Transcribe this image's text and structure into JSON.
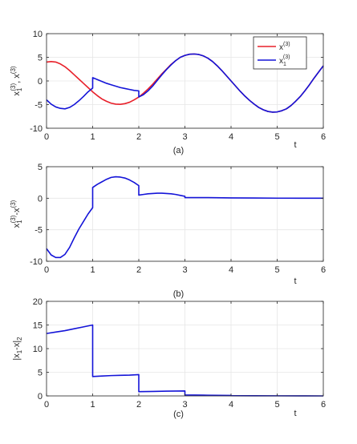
{
  "chart_data": [
    {
      "type": "line",
      "caption": "(a)",
      "xlabel": "t",
      "ylabel_parts": {
        "a": "x",
        "a_sub": "1",
        "a_sup": "(3)",
        "sep": ", ",
        "b": "x",
        "b_sup": "(3)"
      },
      "xlim": [
        0,
        6
      ],
      "ylim": [
        -10,
        10
      ],
      "xticks": [
        "0",
        "1",
        "2",
        "3",
        "4",
        "5",
        "6"
      ],
      "yticks": [
        "-10",
        "-5",
        "0",
        "5",
        "10"
      ],
      "grid": true,
      "legend": {
        "placement": "top-right",
        "entries": [
          {
            "base": "x",
            "sup": "(3)",
            "sub": ""
          },
          {
            "base": "x",
            "sup": "(3)",
            "sub": "1"
          }
        ]
      },
      "series": [
        {
          "color": "#e8202a",
          "legend_index": 0,
          "x": [
            0,
            0.1,
            0.2,
            0.3,
            0.4,
            0.5,
            0.6,
            0.7,
            0.8,
            0.9,
            1.0,
            1.1,
            1.2,
            1.3,
            1.4,
            1.5,
            1.6,
            1.7,
            1.8,
            1.9,
            2.0,
            2.1,
            2.2,
            2.3,
            2.4,
            2.5,
            2.6,
            2.7,
            2.8,
            2.9,
            3.0,
            3.1,
            3.2,
            3.3,
            3.4,
            3.5,
            3.6,
            3.7,
            3.8,
            3.9,
            4.0,
            4.1,
            4.2,
            4.3,
            4.4,
            4.5,
            4.6,
            4.7,
            4.8,
            4.9,
            5.0,
            5.1,
            5.2,
            5.3,
            5.4,
            5.5,
            5.6,
            5.7,
            5.8,
            5.9,
            6.0
          ],
          "y": [
            4.0,
            4.1,
            4.0,
            3.6,
            3.0,
            2.2,
            1.3,
            0.4,
            -0.5,
            -1.4,
            -2.3,
            -3.1,
            -3.8,
            -4.3,
            -4.7,
            -4.9,
            -4.95,
            -4.8,
            -4.5,
            -4.0,
            -3.4,
            -2.6,
            -1.7,
            -0.7,
            0.4,
            1.5,
            2.5,
            3.5,
            4.3,
            5.0,
            5.4,
            5.65,
            5.7,
            5.6,
            5.3,
            4.8,
            4.1,
            3.2,
            2.2,
            1.1,
            0.0,
            -1.1,
            -2.2,
            -3.2,
            -4.1,
            -4.9,
            -5.6,
            -6.1,
            -6.45,
            -6.6,
            -6.55,
            -6.3,
            -5.9,
            -5.2,
            -4.3,
            -3.3,
            -2.1,
            -0.8,
            0.6,
            1.9,
            3.2
          ]
        },
        {
          "color": "#1414d8",
          "legend_index": 1,
          "x": [
            0,
            0.1,
            0.2,
            0.3,
            0.4,
            0.5,
            0.6,
            0.7,
            0.8,
            0.9,
            1.0,
            1.0,
            1.1,
            1.2,
            1.3,
            1.4,
            1.5,
            1.6,
            1.7,
            1.8,
            1.9,
            2.0,
            2.0,
            2.1,
            2.2,
            2.3,
            2.4,
            2.5,
            2.6,
            2.7,
            2.8,
            2.9,
            3.0,
            3.1,
            3.2,
            3.3,
            3.4,
            3.5,
            3.6,
            3.7,
            3.8,
            3.9,
            4.0,
            4.1,
            4.2,
            4.3,
            4.4,
            4.5,
            4.6,
            4.7,
            4.8,
            4.9,
            5.0,
            5.1,
            5.2,
            5.3,
            5.4,
            5.5,
            5.6,
            5.7,
            5.8,
            5.9,
            6.0
          ],
          "y": [
            -4.0,
            -4.9,
            -5.5,
            -5.8,
            -5.9,
            -5.6,
            -5.0,
            -4.2,
            -3.3,
            -2.3,
            -1.5,
            0.7,
            0.3,
            -0.1,
            -0.5,
            -0.8,
            -1.1,
            -1.4,
            -1.6,
            -1.8,
            -2.0,
            -2.1,
            -3.4,
            -2.9,
            -2.1,
            -1.1,
            0.1,
            1.3,
            2.4,
            3.4,
            4.3,
            5.0,
            5.4,
            5.65,
            5.7,
            5.6,
            5.3,
            4.8,
            4.1,
            3.2,
            2.2,
            1.1,
            0.0,
            -1.1,
            -2.2,
            -3.2,
            -4.1,
            -4.9,
            -5.6,
            -6.1,
            -6.45,
            -6.6,
            -6.55,
            -6.3,
            -5.9,
            -5.2,
            -4.3,
            -3.3,
            -2.1,
            -0.8,
            0.6,
            1.9,
            3.2
          ]
        }
      ]
    },
    {
      "type": "line",
      "caption": "(b)",
      "xlabel": "t",
      "ylabel_parts": {
        "a": "x",
        "a_sub": "1",
        "a_sup": "(3)",
        "sep": "-",
        "b": "x",
        "b_sup": "(3)"
      },
      "xlim": [
        0,
        6
      ],
      "ylim": [
        -10,
        5
      ],
      "xticks": [
        "0",
        "1",
        "2",
        "3",
        "4",
        "5",
        "6"
      ],
      "yticks": [
        "-10",
        "-5",
        "0",
        "5"
      ],
      "grid": true,
      "series": [
        {
          "color": "#1414d8",
          "x": [
            0,
            0.1,
            0.2,
            0.3,
            0.4,
            0.5,
            0.6,
            0.7,
            0.8,
            0.9,
            1.0,
            1.0,
            1.1,
            1.2,
            1.3,
            1.4,
            1.5,
            1.6,
            1.7,
            1.8,
            1.9,
            2.0,
            2.0,
            2.1,
            2.2,
            2.3,
            2.4,
            2.5,
            2.6,
            2.7,
            2.8,
            2.9,
            3.0,
            3.0,
            3.5,
            4.0,
            4.5,
            5.0,
            5.5,
            6.0
          ],
          "y": [
            -8.0,
            -9.0,
            -9.4,
            -9.4,
            -8.9,
            -7.8,
            -6.3,
            -4.9,
            -3.7,
            -2.5,
            -1.5,
            1.7,
            2.2,
            2.6,
            3.0,
            3.3,
            3.4,
            3.35,
            3.2,
            2.9,
            2.5,
            2.0,
            0.5,
            0.6,
            0.7,
            0.75,
            0.8,
            0.8,
            0.75,
            0.7,
            0.6,
            0.45,
            0.3,
            0.1,
            0.1,
            0.05,
            0.03,
            0.01,
            0.0,
            0.0
          ]
        }
      ]
    },
    {
      "type": "line",
      "caption": "(c)",
      "xlabel": "t",
      "ylabel_parts": {
        "a": "|x",
        "a_sub": "1",
        "a_sup": "",
        "sep": "-x|",
        "b": "",
        "b_sup": "",
        "b_sub": "2"
      },
      "xlim": [
        0,
        6
      ],
      "ylim": [
        0,
        20
      ],
      "xticks": [
        "0",
        "1",
        "2",
        "3",
        "4",
        "5",
        "6"
      ],
      "yticks": [
        "0",
        "5",
        "10",
        "15",
        "20"
      ],
      "grid": true,
      "series": [
        {
          "color": "#1414d8",
          "x": [
            0,
            0.2,
            0.4,
            0.6,
            0.8,
            1.0,
            1.0,
            1.2,
            1.4,
            1.6,
            1.8,
            2.0,
            2.0,
            2.3,
            2.6,
            3.0,
            3.0,
            3.5,
            4.0,
            4.0,
            4.5,
            5.0,
            5.5,
            6.0
          ],
          "y": [
            13.2,
            13.5,
            13.8,
            14.2,
            14.6,
            15.0,
            4.1,
            4.2,
            4.3,
            4.35,
            4.4,
            4.5,
            0.9,
            0.95,
            1.0,
            1.05,
            0.2,
            0.15,
            0.1,
            0.05,
            0.03,
            0.02,
            0.01,
            0.0
          ]
        }
      ]
    }
  ]
}
